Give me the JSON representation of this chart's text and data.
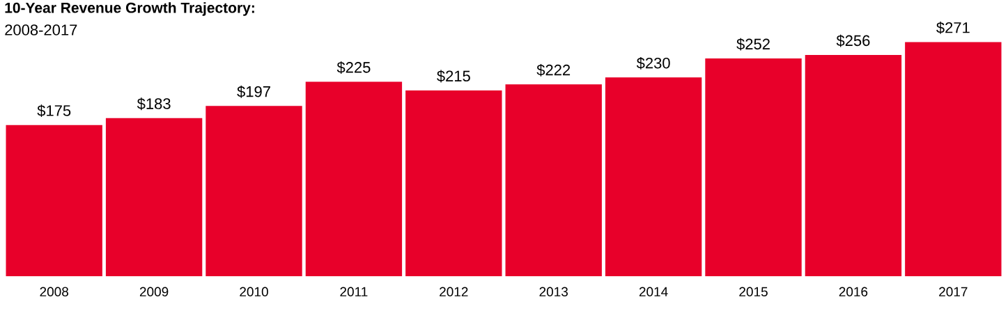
{
  "chart_data": {
    "type": "bar",
    "title": "10-Year Revenue Growth Trajectory:",
    "subtitle": "2008-2017",
    "categories": [
      "2008",
      "2009",
      "2010",
      "2011",
      "2012",
      "2013",
      "2014",
      "2015",
      "2016",
      "2017"
    ],
    "values": [
      175,
      183,
      197,
      225,
      215,
      222,
      230,
      252,
      256,
      271
    ],
    "value_labels": [
      "$175",
      "$183",
      "$197",
      "$225",
      "$215",
      "$222",
      "$230",
      "$252",
      "$256",
      "$271"
    ],
    "color": "#e8002a"
  }
}
